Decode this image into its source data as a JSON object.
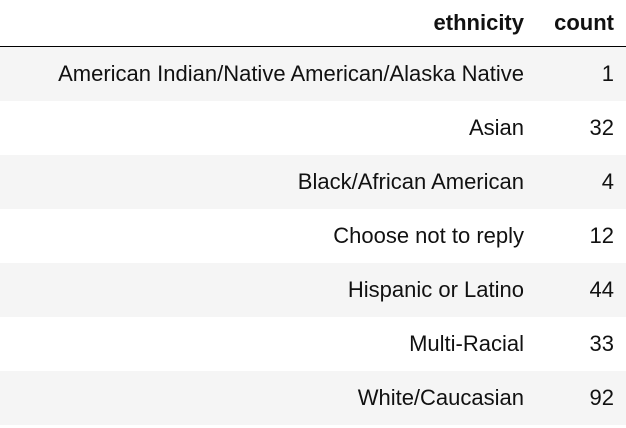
{
  "table": {
    "headers": [
      "ethnicity",
      "count"
    ],
    "rows": [
      {
        "ethnicity": "American Indian/Native American/Alaska Native",
        "count": "1"
      },
      {
        "ethnicity": "Asian",
        "count": "32"
      },
      {
        "ethnicity": "Black/African American",
        "count": "4"
      },
      {
        "ethnicity": "Choose not to reply",
        "count": "12"
      },
      {
        "ethnicity": "Hispanic or Latino",
        "count": "44"
      },
      {
        "ethnicity": "Multi-Racial",
        "count": "33"
      },
      {
        "ethnicity": "White/Caucasian",
        "count": "92"
      }
    ]
  }
}
